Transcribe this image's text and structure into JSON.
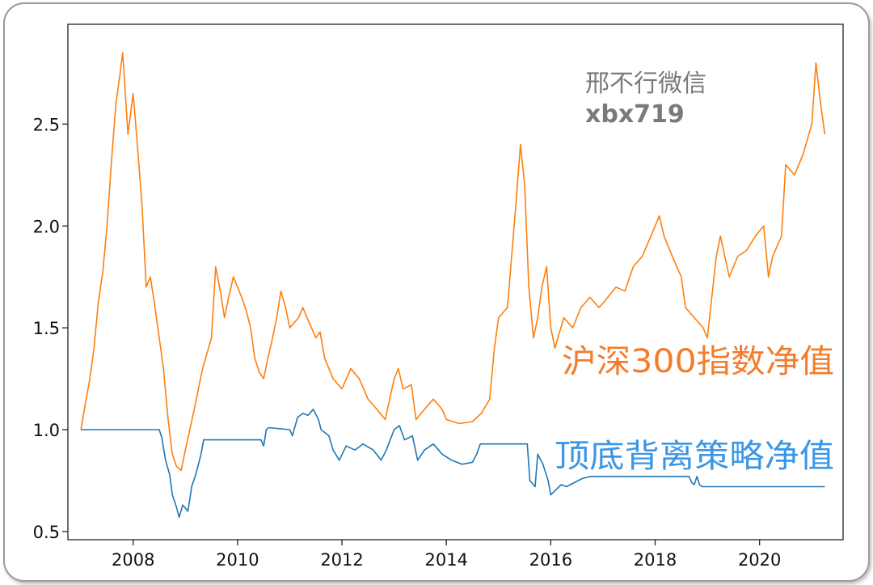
{
  "chart_data": {
    "type": "line",
    "title": "",
    "xlabel": "",
    "ylabel": "",
    "xlim": [
      2006.75,
      2021.6
    ],
    "ylim": [
      0.46,
      2.99
    ],
    "x_ticks": [
      {
        "value": 2008,
        "label": "2008"
      },
      {
        "value": 2010,
        "label": "2010"
      },
      {
        "value": 2012,
        "label": "2012"
      },
      {
        "value": 2014,
        "label": "2014"
      },
      {
        "value": 2016,
        "label": "2016"
      },
      {
        "value": 2018,
        "label": "2018"
      },
      {
        "value": 2020,
        "label": "2020"
      }
    ],
    "y_ticks": [
      {
        "value": 0.5,
        "label": "0.5"
      },
      {
        "value": 1.0,
        "label": "1.0"
      },
      {
        "value": 1.5,
        "label": "1.5"
      },
      {
        "value": 2.0,
        "label": "2.0"
      },
      {
        "value": 2.5,
        "label": "2.5"
      }
    ],
    "grid": false,
    "series": [
      {
        "name": "沪深300指数净值",
        "color": "#ff7f0e",
        "points": [
          [
            2007.0,
            1.0
          ],
          [
            2007.08,
            1.12
          ],
          [
            2007.17,
            1.25
          ],
          [
            2007.25,
            1.4
          ],
          [
            2007.33,
            1.62
          ],
          [
            2007.42,
            1.78
          ],
          [
            2007.5,
            2.0
          ],
          [
            2007.58,
            2.3
          ],
          [
            2007.67,
            2.6
          ],
          [
            2007.75,
            2.75
          ],
          [
            2007.8,
            2.85
          ],
          [
            2007.9,
            2.45
          ],
          [
            2008.0,
            2.65
          ],
          [
            2008.08,
            2.4
          ],
          [
            2008.17,
            2.1
          ],
          [
            2008.25,
            1.7
          ],
          [
            2008.33,
            1.75
          ],
          [
            2008.42,
            1.6
          ],
          [
            2008.5,
            1.45
          ],
          [
            2008.58,
            1.3
          ],
          [
            2008.67,
            1.05
          ],
          [
            2008.75,
            0.88
          ],
          [
            2008.83,
            0.82
          ],
          [
            2008.92,
            0.8
          ],
          [
            2009.0,
            0.9
          ],
          [
            2009.17,
            1.1
          ],
          [
            2009.33,
            1.3
          ],
          [
            2009.5,
            1.45
          ],
          [
            2009.58,
            1.8
          ],
          [
            2009.67,
            1.68
          ],
          [
            2009.75,
            1.55
          ],
          [
            2009.83,
            1.65
          ],
          [
            2009.92,
            1.75
          ],
          [
            2010.08,
            1.65
          ],
          [
            2010.17,
            1.58
          ],
          [
            2010.25,
            1.5
          ],
          [
            2010.33,
            1.35
          ],
          [
            2010.42,
            1.28
          ],
          [
            2010.5,
            1.25
          ],
          [
            2010.58,
            1.35
          ],
          [
            2010.67,
            1.45
          ],
          [
            2010.75,
            1.55
          ],
          [
            2010.83,
            1.68
          ],
          [
            2010.92,
            1.6
          ],
          [
            2011.0,
            1.5
          ],
          [
            2011.17,
            1.55
          ],
          [
            2011.25,
            1.6
          ],
          [
            2011.33,
            1.55
          ],
          [
            2011.5,
            1.45
          ],
          [
            2011.58,
            1.48
          ],
          [
            2011.67,
            1.35
          ],
          [
            2011.83,
            1.25
          ],
          [
            2012.0,
            1.2
          ],
          [
            2012.17,
            1.3
          ],
          [
            2012.33,
            1.25
          ],
          [
            2012.5,
            1.15
          ],
          [
            2012.67,
            1.1
          ],
          [
            2012.83,
            1.05
          ],
          [
            2013.0,
            1.25
          ],
          [
            2013.08,
            1.3
          ],
          [
            2013.17,
            1.2
          ],
          [
            2013.33,
            1.22
          ],
          [
            2013.42,
            1.05
          ],
          [
            2013.58,
            1.1
          ],
          [
            2013.75,
            1.15
          ],
          [
            2013.92,
            1.1
          ],
          [
            2014.0,
            1.05
          ],
          [
            2014.25,
            1.03
          ],
          [
            2014.5,
            1.04
          ],
          [
            2014.67,
            1.08
          ],
          [
            2014.83,
            1.15
          ],
          [
            2014.92,
            1.4
          ],
          [
            2015.0,
            1.55
          ],
          [
            2015.17,
            1.6
          ],
          [
            2015.33,
            2.1
          ],
          [
            2015.42,
            2.4
          ],
          [
            2015.5,
            2.2
          ],
          [
            2015.58,
            1.7
          ],
          [
            2015.67,
            1.45
          ],
          [
            2015.75,
            1.55
          ],
          [
            2015.83,
            1.7
          ],
          [
            2015.92,
            1.8
          ],
          [
            2016.0,
            1.5
          ],
          [
            2016.08,
            1.4
          ],
          [
            2016.25,
            1.55
          ],
          [
            2016.42,
            1.5
          ],
          [
            2016.58,
            1.6
          ],
          [
            2016.75,
            1.65
          ],
          [
            2016.92,
            1.6
          ],
          [
            2017.0,
            1.62
          ],
          [
            2017.25,
            1.7
          ],
          [
            2017.42,
            1.68
          ],
          [
            2017.58,
            1.8
          ],
          [
            2017.75,
            1.85
          ],
          [
            2017.92,
            1.95
          ],
          [
            2018.08,
            2.05
          ],
          [
            2018.17,
            1.95
          ],
          [
            2018.33,
            1.85
          ],
          [
            2018.5,
            1.75
          ],
          [
            2018.58,
            1.6
          ],
          [
            2018.75,
            1.55
          ],
          [
            2018.92,
            1.5
          ],
          [
            2019.0,
            1.45
          ],
          [
            2019.17,
            1.85
          ],
          [
            2019.25,
            1.95
          ],
          [
            2019.42,
            1.75
          ],
          [
            2019.58,
            1.85
          ],
          [
            2019.75,
            1.88
          ],
          [
            2019.92,
            1.95
          ],
          [
            2020.08,
            2.0
          ],
          [
            2020.17,
            1.75
          ],
          [
            2020.25,
            1.85
          ],
          [
            2020.42,
            1.95
          ],
          [
            2020.5,
            2.3
          ],
          [
            2020.67,
            2.25
          ],
          [
            2020.83,
            2.35
          ],
          [
            2021.0,
            2.5
          ],
          [
            2021.08,
            2.8
          ],
          [
            2021.17,
            2.6
          ],
          [
            2021.25,
            2.45
          ]
        ]
      },
      {
        "name": "顶底背离策略净值",
        "color": "#1f77b4",
        "points": [
          [
            2007.0,
            1.0
          ],
          [
            2008.0,
            1.0
          ],
          [
            2008.5,
            1.0
          ],
          [
            2008.55,
            0.96
          ],
          [
            2008.62,
            0.85
          ],
          [
            2008.7,
            0.78
          ],
          [
            2008.75,
            0.68
          ],
          [
            2008.83,
            0.62
          ],
          [
            2008.88,
            0.57
          ],
          [
            2008.95,
            0.63
          ],
          [
            2009.05,
            0.6
          ],
          [
            2009.12,
            0.72
          ],
          [
            2009.2,
            0.78
          ],
          [
            2009.3,
            0.88
          ],
          [
            2009.35,
            0.95
          ],
          [
            2010.0,
            0.95
          ],
          [
            2010.45,
            0.95
          ],
          [
            2010.5,
            0.92
          ],
          [
            2010.55,
            1.0
          ],
          [
            2010.6,
            1.01
          ],
          [
            2011.0,
            1.0
          ],
          [
            2011.05,
            0.97
          ],
          [
            2011.15,
            1.06
          ],
          [
            2011.25,
            1.08
          ],
          [
            2011.35,
            1.07
          ],
          [
            2011.45,
            1.1
          ],
          [
            2011.55,
            1.05
          ],
          [
            2011.6,
            1.0
          ],
          [
            2011.75,
            0.97
          ],
          [
            2011.83,
            0.9
          ],
          [
            2011.95,
            0.85
          ],
          [
            2012.08,
            0.92
          ],
          [
            2012.25,
            0.9
          ],
          [
            2012.4,
            0.93
          ],
          [
            2012.6,
            0.9
          ],
          [
            2012.75,
            0.85
          ],
          [
            2012.85,
            0.9
          ],
          [
            2013.0,
            1.0
          ],
          [
            2013.1,
            1.02
          ],
          [
            2013.2,
            0.95
          ],
          [
            2013.35,
            0.97
          ],
          [
            2013.45,
            0.85
          ],
          [
            2013.58,
            0.9
          ],
          [
            2013.75,
            0.93
          ],
          [
            2013.92,
            0.88
          ],
          [
            2014.1,
            0.85
          ],
          [
            2014.3,
            0.83
          ],
          [
            2014.5,
            0.84
          ],
          [
            2014.58,
            0.88
          ],
          [
            2014.65,
            0.93
          ],
          [
            2015.0,
            0.93
          ],
          [
            2015.55,
            0.93
          ],
          [
            2015.6,
            0.75
          ],
          [
            2015.7,
            0.72
          ],
          [
            2015.75,
            0.88
          ],
          [
            2015.85,
            0.83
          ],
          [
            2015.95,
            0.75
          ],
          [
            2016.0,
            0.68
          ],
          [
            2016.08,
            0.7
          ],
          [
            2016.2,
            0.73
          ],
          [
            2016.3,
            0.72
          ],
          [
            2016.45,
            0.74
          ],
          [
            2016.6,
            0.76
          ],
          [
            2016.75,
            0.77
          ],
          [
            2016.83,
            0.77
          ],
          [
            2017.0,
            0.77
          ],
          [
            2018.0,
            0.77
          ],
          [
            2018.65,
            0.77
          ],
          [
            2018.7,
            0.74
          ],
          [
            2018.75,
            0.73
          ],
          [
            2018.8,
            0.77
          ],
          [
            2018.85,
            0.73
          ],
          [
            2018.9,
            0.72
          ],
          [
            2019.0,
            0.72
          ],
          [
            2020.0,
            0.72
          ],
          [
            2021.0,
            0.72
          ],
          [
            2021.25,
            0.72
          ]
        ]
      }
    ],
    "annotations": [
      {
        "text": "沪深300指数净值",
        "color": "#f47c2c"
      },
      {
        "text": "顶底背离策略净值",
        "color": "#3a97e6"
      }
    ]
  },
  "watermark": {
    "line1": "邢不行微信",
    "line2": "xbx719"
  }
}
